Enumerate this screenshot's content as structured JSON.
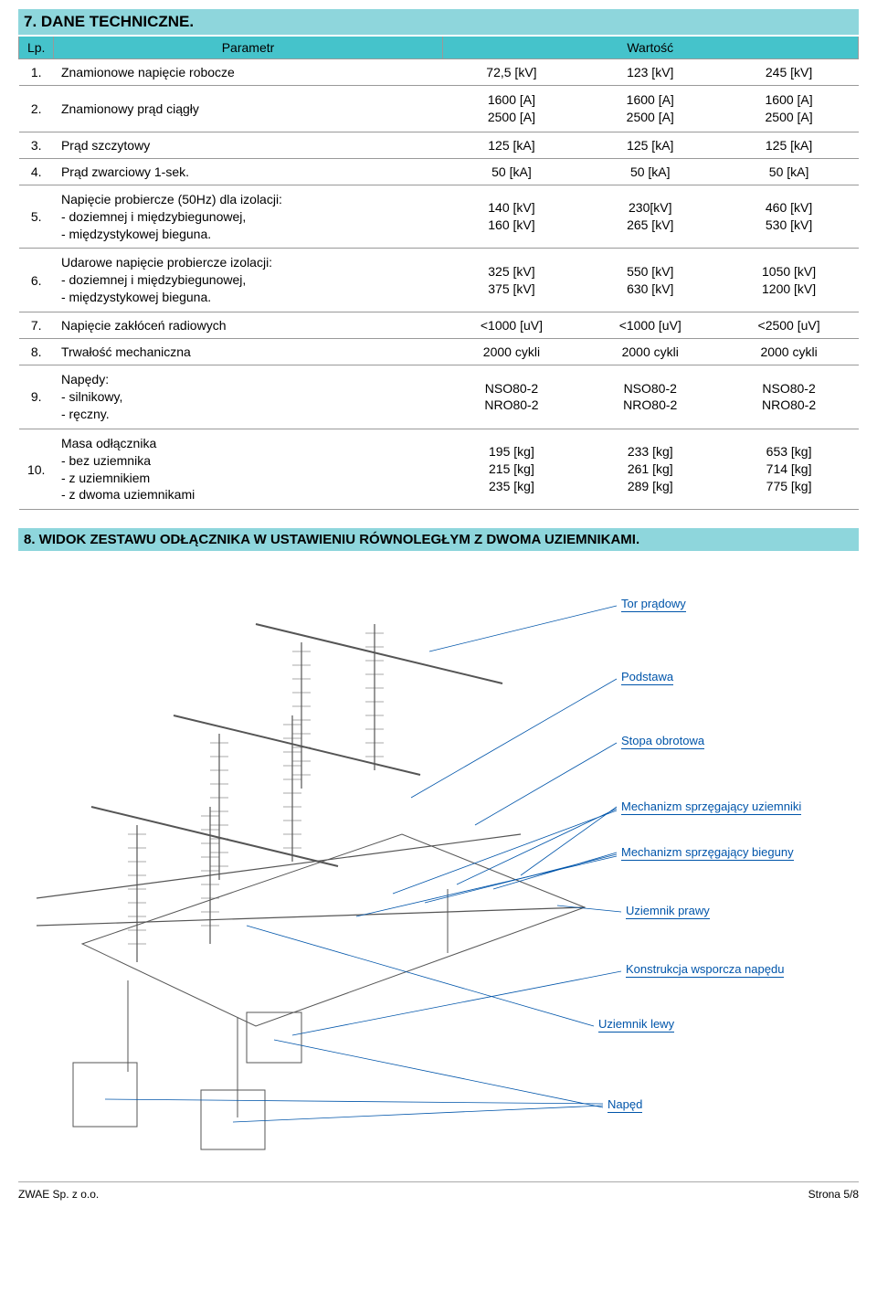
{
  "section7": {
    "title": "7. DANE TECHNICZNE.",
    "headers": {
      "lp": "Lp.",
      "param": "Parametr",
      "value": "Wartość"
    },
    "rows": [
      {
        "lp": "1.",
        "param": "Znamionowe napięcie robocze",
        "v1": "72,5 [kV]",
        "v2": "123 [kV]",
        "v3": "245 [kV]"
      },
      {
        "lp": "2.",
        "param": "Znamionowy prąd ciągły",
        "v1": "1600 [A]\n2500 [A]",
        "v2": "1600 [A]\n2500 [A]",
        "v3": "1600 [A]\n2500 [A]"
      },
      {
        "lp": "3.",
        "param": "Prąd szczytowy",
        "v1": "125 [kA]",
        "v2": "125 [kA]",
        "v3": "125 [kA]"
      },
      {
        "lp": "4.",
        "param": "Prąd zwarciowy 1-sek.",
        "v1": "50 [kA]",
        "v2": "50 [kA]",
        "v3": "50 [kA]"
      },
      {
        "lp": "5.",
        "param": "Napięcie probiercze (50Hz) dla izolacji:\n- doziemnej i międzybiegunowej,\n- międzystykowej bieguna.",
        "v1": "140 [kV]\n160 [kV]",
        "v2": "230[kV]\n265 [kV]",
        "v3": "460 [kV]\n530 [kV]"
      },
      {
        "lp": "6.",
        "param": "Udarowe napięcie probiercze izolacji:\n- doziemnej i międzybiegunowej,\n- międzystykowej bieguna.",
        "v1": "325 [kV]\n375 [kV]",
        "v2": "550 [kV]\n630 [kV]",
        "v3": "1050 [kV]\n1200 [kV]"
      },
      {
        "lp": "7.",
        "param": "Napięcie zakłóceń radiowych",
        "v1": "<1000 [uV]",
        "v2": "<1000 [uV]",
        "v3": "<2500 [uV]"
      },
      {
        "lp": "8.",
        "param": "Trwałość mechaniczna",
        "v1": "2000 cykli",
        "v2": "2000 cykli",
        "v3": "2000 cykli"
      },
      {
        "lp": "9.",
        "param": "Napędy:\n- silnikowy,\n- ręczny.",
        "v1": "NSO80-2\nNRO80-2",
        "v2": "NSO80-2\nNRO80-2",
        "v3": "NSO80-2\nNRO80-2"
      },
      {
        "lp": "10.",
        "param": "Masa odłącznika\n- bez uziemnika\n- z uziemnikiem\n- z dwoma uziemnikami",
        "v1": "195 [kg]\n215 [kg]\n235 [kg]",
        "v2": "233 [kg]\n261 [kg]\n289 [kg]",
        "v3": "653 [kg]\n714 [kg]\n775 [kg]"
      }
    ]
  },
  "section8": {
    "title": "8. WIDOK ZESTAWU ODŁĄCZNIKA W USTAWIENIU RÓWNOLEGŁYM Z DWOMA UZIEMNIKAMI.",
    "labels": {
      "tor": "Tor prądowy",
      "podstawa": "Podstawa",
      "stopa": "Stopa obrotowa",
      "mech_uziemniki": "Mechanizm sprzęgający uziemniki",
      "mech_bieguny": "Mechanizm sprzęgający bieguny",
      "uziemnik_prawy": "Uziemnik prawy",
      "konstrukcja": "Konstrukcja wsporcza napędu",
      "uziemnik_lewy": "Uziemnik lewy",
      "naped": "Napęd"
    }
  },
  "footer": {
    "left": "ZWAE Sp. z o.o.",
    "right": "Strona 5/8"
  },
  "colors": {
    "header_bg": "#8ed6dc",
    "th_bg": "#45c3cb",
    "label_color": "#0055aa",
    "line_color": "#999"
  }
}
